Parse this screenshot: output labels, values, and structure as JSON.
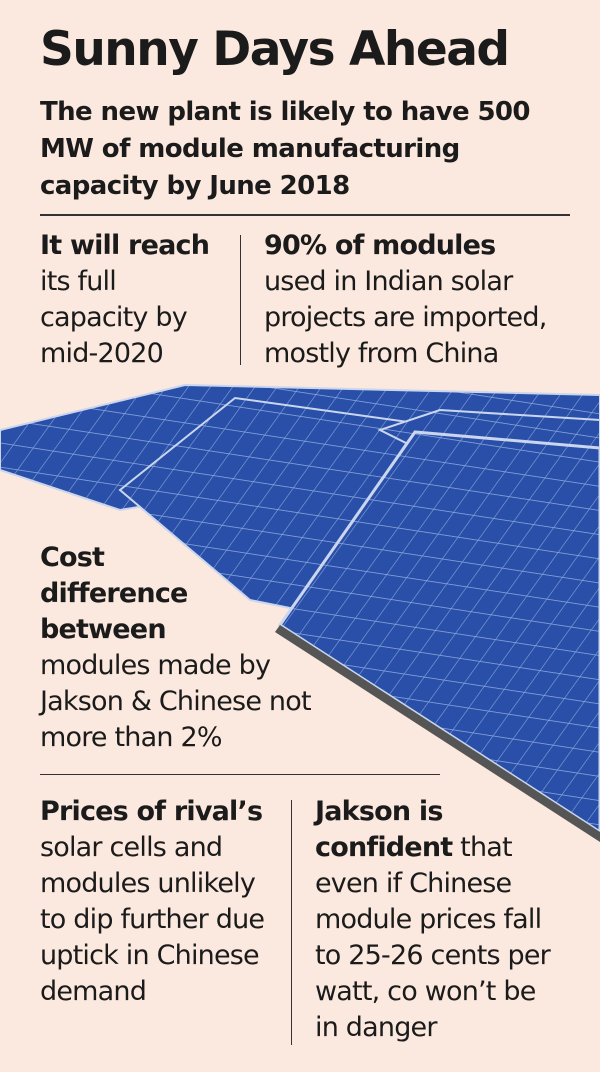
{
  "header": {
    "title": "Sunny Days Ahead",
    "subtitle": "The new plant is likely to have 500 MW of module manufacturing capacity by June 2018"
  },
  "facts": [
    {
      "lead": "It will reach",
      "text": "its full capacity by mid-2020"
    },
    {
      "lead": "90% of modules",
      "text": "used in Indian solar projects are imported, mostly from China"
    },
    {
      "lead": "Cost difference between",
      "text": "modules made by Jakson & Chinese not more than 2%"
    },
    {
      "lead": "Prices of rival’s",
      "text": "solar cells and modules unlikely to dip further due uptick in Chinese demand"
    },
    {
      "lead": "Jakson is confident",
      "text": "that even if Chinese module prices fall to 25-26 cents per watt, co won’t be in danger"
    }
  ]
}
